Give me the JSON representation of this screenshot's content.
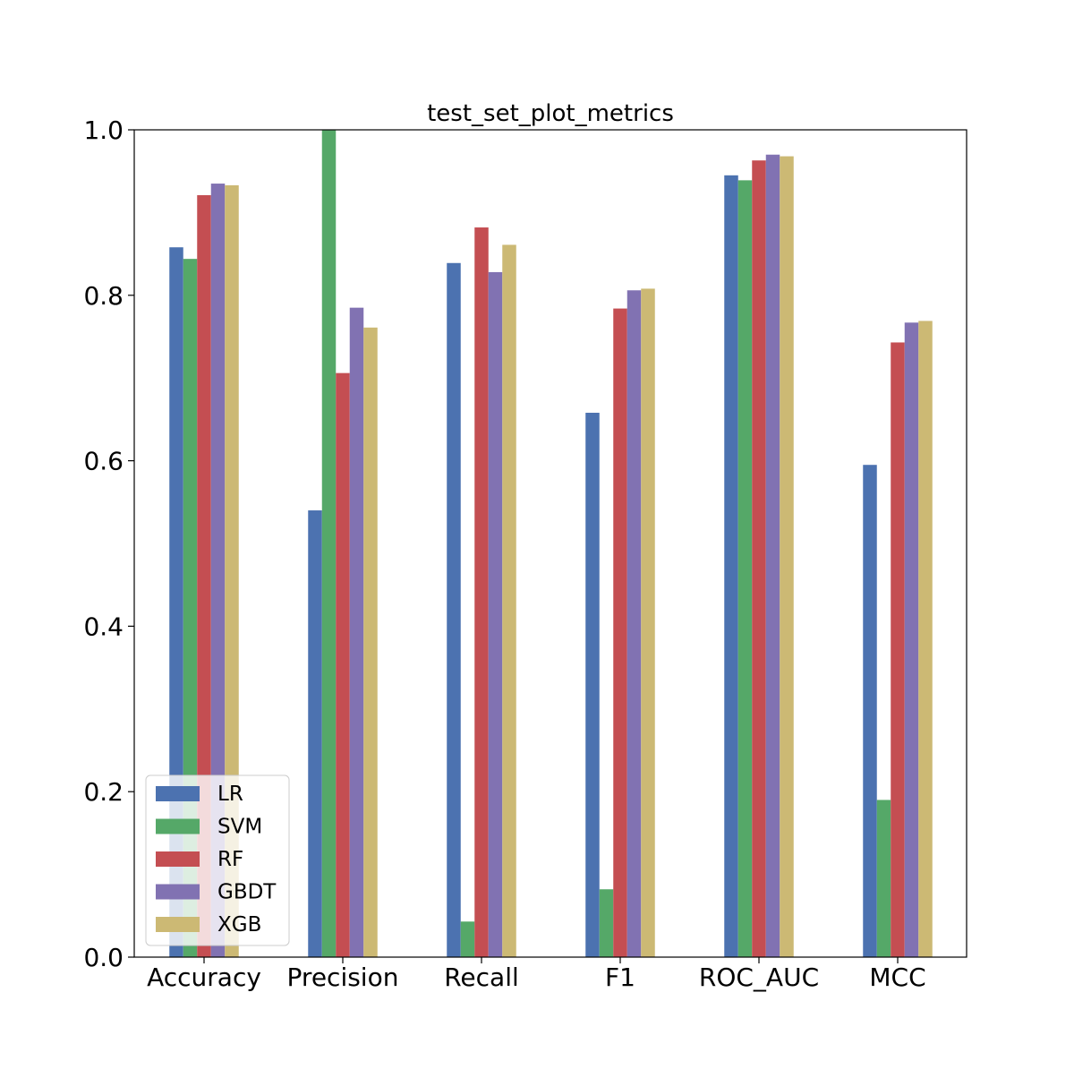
{
  "chart_data": {
    "type": "bar",
    "title": "test_set_plot_metrics",
    "xlabel": "",
    "ylabel": "",
    "ylim": [
      0,
      1.0
    ],
    "yticks": [
      "0.0",
      "0.2",
      "0.4",
      "0.6",
      "0.8",
      "1.0"
    ],
    "grid": false,
    "legend_position": "lower-left",
    "categories": [
      "Accuracy",
      "Precision",
      "Recall",
      "F1",
      "ROC_AUC",
      "MCC"
    ],
    "series": [
      {
        "name": "LR",
        "color": "#4c72b0",
        "values": [
          0.858,
          0.54,
          0.839,
          0.658,
          0.945,
          0.595
        ]
      },
      {
        "name": "SVM",
        "color": "#55a868",
        "values": [
          0.844,
          1.0,
          0.043,
          0.082,
          0.939,
          0.19
        ]
      },
      {
        "name": "RF",
        "color": "#c44e52",
        "values": [
          0.921,
          0.706,
          0.882,
          0.784,
          0.963,
          0.743
        ]
      },
      {
        "name": "GBDT",
        "color": "#8172b2",
        "values": [
          0.935,
          0.785,
          0.828,
          0.806,
          0.97,
          0.767
        ]
      },
      {
        "name": "XGB",
        "color": "#ccb974",
        "values": [
          0.933,
          0.761,
          0.861,
          0.808,
          0.968,
          0.769
        ]
      }
    ]
  }
}
